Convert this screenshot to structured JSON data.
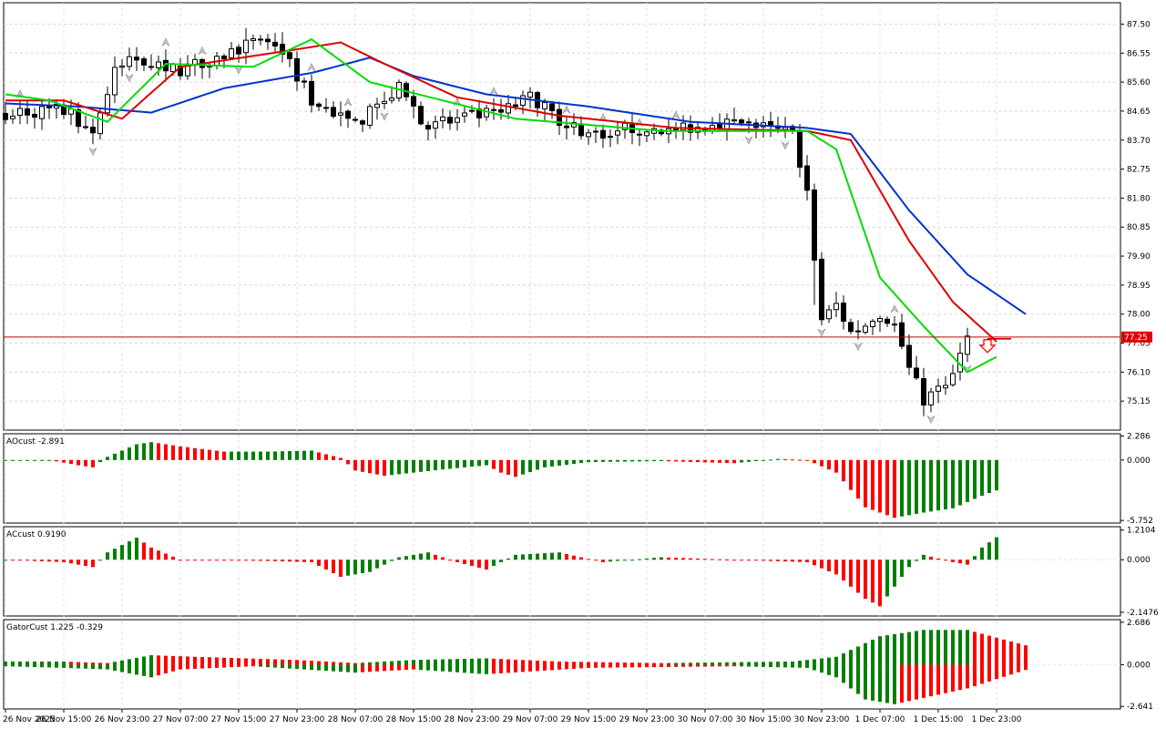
{
  "chart_data": [
    {
      "type": "candlestick",
      "panel": "main",
      "ylim": [
        74.2,
        88.2
      ],
      "y_ticks": [
        "87.50",
        "86.55",
        "85.60",
        "84.65",
        "83.70",
        "82.75",
        "81.80",
        "80.85",
        "79.90",
        "78.95",
        "78.00",
        "77.05",
        "76.10",
        "75.15"
      ],
      "current_price_label": "77.25",
      "current_price": 77.25,
      "x_ticks": [
        "26 Nov 2025",
        "26 Nov 15:00",
        "26 Nov 23:00",
        "27 Nov 07:00",
        "27 Nov 15:00",
        "27 Nov 23:00",
        "28 Nov 07:00",
        "28 Nov 15:00",
        "28 Nov 23:00",
        "29 Nov 07:00",
        "29 Nov 15:00",
        "29 Nov 23:00",
        "30 Nov 07:00",
        "30 Nov 15:00",
        "30 Nov 23:00",
        "1 Dec 07:00",
        "1 Dec 15:00",
        "1 Dec 23:00"
      ],
      "bar_count": 136,
      "close_anchors": [
        [
          0,
          84.6
        ],
        [
          8,
          84.7
        ],
        [
          12,
          84.0
        ],
        [
          15,
          85.9
        ],
        [
          18,
          86.4
        ],
        [
          24,
          86.0
        ],
        [
          30,
          86.5
        ],
        [
          34,
          86.9
        ],
        [
          38,
          86.6
        ],
        [
          42,
          85.0
        ],
        [
          48,
          84.2
        ],
        [
          54,
          85.4
        ],
        [
          58,
          84.1
        ],
        [
          62,
          84.4
        ],
        [
          68,
          84.6
        ],
        [
          72,
          85.1
        ],
        [
          76,
          84.4
        ],
        [
          80,
          83.9
        ],
        [
          86,
          84.1
        ],
        [
          92,
          84.0
        ],
        [
          98,
          84.3
        ],
        [
          104,
          84.1
        ],
        [
          108,
          83.9
        ],
        [
          110,
          82.0
        ],
        [
          112,
          77.8
        ],
        [
          114,
          78.3
        ],
        [
          116,
          77.4
        ],
        [
          120,
          77.9
        ],
        [
          122,
          77.7
        ],
        [
          124,
          76.2
        ],
        [
          126,
          75.2
        ],
        [
          128,
          75.5
        ],
        [
          130,
          76.0
        ],
        [
          132,
          77.25
        ]
      ],
      "arrow": {
        "type": "sell",
        "color": "#ff0000",
        "after_bar": 132
      },
      "alligator": {
        "jaw": {
          "name": "",
          "color": "#0033cc",
          "anchors": [
            [
              0,
              84.9
            ],
            [
              10,
              84.8
            ],
            [
              20,
              84.6
            ],
            [
              30,
              85.4
            ],
            [
              42,
              85.9
            ],
            [
              50,
              86.4
            ],
            [
              56,
              85.8
            ],
            [
              66,
              85.2
            ],
            [
              80,
              84.8
            ],
            [
              94,
              84.3
            ],
            [
              110,
              84.1
            ],
            [
              116,
              83.9
            ],
            [
              124,
              81.4
            ],
            [
              132,
              79.3
            ],
            [
              140,
              78.0
            ]
          ]
        },
        "teeth": {
          "name": "",
          "color": "#dd0000",
          "anchors": [
            [
              0,
              85.0
            ],
            [
              8,
              85.0
            ],
            [
              16,
              84.4
            ],
            [
              24,
              86.1
            ],
            [
              38,
              86.6
            ],
            [
              46,
              86.9
            ],
            [
              52,
              86.2
            ],
            [
              62,
              85.1
            ],
            [
              76,
              84.5
            ],
            [
              92,
              84.1
            ],
            [
              110,
              84.0
            ],
            [
              116,
              83.7
            ],
            [
              124,
              80.4
            ],
            [
              130,
              78.4
            ],
            [
              136,
              77.1
            ]
          ]
        },
        "lips": {
          "name": "",
          "color": "#00dd00",
          "anchors": [
            [
              0,
              85.2
            ],
            [
              6,
              85.0
            ],
            [
              14,
              84.3
            ],
            [
              22,
              86.2
            ],
            [
              34,
              86.1
            ],
            [
              42,
              87.0
            ],
            [
              50,
              85.6
            ],
            [
              60,
              85.0
            ],
            [
              70,
              84.4
            ],
            [
              90,
              84.0
            ],
            [
              110,
              84.0
            ],
            [
              114,
              83.4
            ],
            [
              120,
              79.2
            ],
            [
              126,
              77.6
            ],
            [
              132,
              76.1
            ],
            [
              136,
              76.6
            ]
          ]
        }
      }
    },
    {
      "type": "histogram",
      "panel": "AO",
      "title": "AOcust -2.891",
      "y_ticks": [
        "2.286",
        "0.000",
        "-5.752"
      ],
      "ylim": [
        -6.0,
        2.5
      ],
      "colors": {
        "up": "#008000",
        "down": "#ff0000"
      },
      "anchors": [
        [
          0,
          0.0
        ],
        [
          6,
          0.0
        ],
        [
          10,
          -0.5
        ],
        [
          12,
          -0.7
        ],
        [
          14,
          0.3
        ],
        [
          18,
          1.5
        ],
        [
          20,
          1.7
        ],
        [
          24,
          1.3
        ],
        [
          30,
          0.8
        ],
        [
          36,
          0.8
        ],
        [
          42,
          0.9
        ],
        [
          46,
          0.2
        ],
        [
          48,
          -1.0
        ],
        [
          52,
          -1.5
        ],
        [
          60,
          -0.9
        ],
        [
          66,
          -0.5
        ],
        [
          68,
          -1.2
        ],
        [
          70,
          -1.6
        ],
        [
          74,
          -0.7
        ],
        [
          80,
          -0.2
        ],
        [
          90,
          -0.1
        ],
        [
          100,
          -0.3
        ],
        [
          106,
          0.1
        ],
        [
          110,
          0.0
        ],
        [
          114,
          -1.2
        ],
        [
          118,
          -4.5
        ],
        [
          122,
          -5.5
        ],
        [
          126,
          -5.0
        ],
        [
          130,
          -4.6
        ],
        [
          134,
          -3.4
        ],
        [
          136,
          -2.891
        ]
      ]
    },
    {
      "type": "histogram",
      "panel": "AC",
      "title": "ACcust 0.9190",
      "y_ticks": [
        "1.2104",
        "0.000",
        "-2.1476"
      ],
      "ylim": [
        -2.3,
        1.35
      ],
      "colors": {
        "up": "#008000",
        "down": "#ff0000"
      },
      "anchors": [
        [
          0,
          0.0
        ],
        [
          8,
          -0.1
        ],
        [
          12,
          -0.3
        ],
        [
          14,
          0.3
        ],
        [
          18,
          0.9
        ],
        [
          20,
          0.5
        ],
        [
          24,
          0.0
        ],
        [
          36,
          -0.05
        ],
        [
          42,
          -0.1
        ],
        [
          46,
          -0.7
        ],
        [
          50,
          -0.5
        ],
        [
          54,
          0.1
        ],
        [
          58,
          0.3
        ],
        [
          62,
          -0.1
        ],
        [
          66,
          -0.4
        ],
        [
          70,
          0.2
        ],
        [
          76,
          0.3
        ],
        [
          82,
          -0.1
        ],
        [
          90,
          0.1
        ],
        [
          100,
          0.0
        ],
        [
          110,
          -0.1
        ],
        [
          114,
          -0.6
        ],
        [
          118,
          -1.6
        ],
        [
          120,
          -1.9
        ],
        [
          124,
          -0.3
        ],
        [
          126,
          0.2
        ],
        [
          130,
          -0.1
        ],
        [
          132,
          -0.2
        ],
        [
          134,
          0.5
        ],
        [
          136,
          0.919
        ]
      ]
    },
    {
      "type": "histogram_pair",
      "panel": "Gator",
      "title": "GatorCust 1.225 -0.329",
      "y_ticks": [
        "2.686",
        "0.000",
        "-2.641"
      ],
      "ylim": [
        -2.8,
        2.85
      ],
      "colors": {
        "up": "#008000",
        "down": "#ff0000"
      },
      "upper_anchors": [
        [
          0,
          0.2
        ],
        [
          8,
          0.2
        ],
        [
          14,
          0.1
        ],
        [
          20,
          0.6
        ],
        [
          26,
          0.5
        ],
        [
          40,
          0.3
        ],
        [
          48,
          0.1
        ],
        [
          56,
          0.3
        ],
        [
          66,
          0.4
        ],
        [
          76,
          0.2
        ],
        [
          90,
          0.1
        ],
        [
          108,
          0.2
        ],
        [
          114,
          0.5
        ],
        [
          120,
          1.8
        ],
        [
          126,
          2.2
        ],
        [
          132,
          2.2
        ],
        [
          140,
          1.225
        ]
      ],
      "lower_anchors": [
        [
          0,
          -0.1
        ],
        [
          8,
          -0.2
        ],
        [
          14,
          -0.3
        ],
        [
          20,
          -0.8
        ],
        [
          24,
          -0.3
        ],
        [
          34,
          -0.1
        ],
        [
          48,
          -0.5
        ],
        [
          56,
          -0.3
        ],
        [
          66,
          -0.6
        ],
        [
          80,
          -0.2
        ],
        [
          100,
          -0.1
        ],
        [
          110,
          -0.2
        ],
        [
          114,
          -0.8
        ],
        [
          118,
          -2.2
        ],
        [
          122,
          -2.5
        ],
        [
          126,
          -2.1
        ],
        [
          132,
          -1.5
        ],
        [
          140,
          -0.329
        ]
      ]
    }
  ]
}
